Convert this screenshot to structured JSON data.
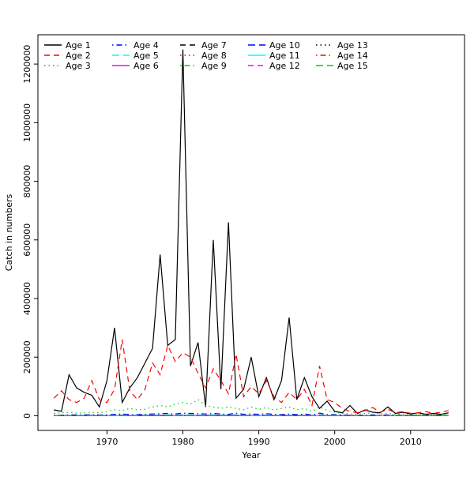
{
  "figure": {
    "background": "#ffffff"
  },
  "chart_data": {
    "type": "line",
    "title": "",
    "xlabel": "Year",
    "ylabel": "Catch in numbers",
    "xlim": [
      1960.9,
      2017.1
    ],
    "ylim": [
      -50000,
      1300000
    ],
    "x_ticks": [
      1970,
      1980,
      1990,
      2000,
      2010
    ],
    "y_ticks": [
      0,
      200000,
      400000,
      600000,
      800000,
      1000000,
      1200000
    ],
    "grid": false,
    "legend_position": "top-left",
    "legend_columns": 5,
    "years": [
      1963,
      1964,
      1965,
      1966,
      1967,
      1968,
      1969,
      1970,
      1971,
      1972,
      1973,
      1974,
      1975,
      1976,
      1977,
      1978,
      1979,
      1980,
      1981,
      1982,
      1983,
      1984,
      1985,
      1986,
      1987,
      1988,
      1989,
      1990,
      1991,
      1992,
      1993,
      1994,
      1995,
      1996,
      1997,
      1998,
      1999,
      2000,
      2001,
      2002,
      2003,
      2004,
      2005,
      2006,
      2007,
      2008,
      2009,
      2010,
      2011,
      2012,
      2013,
      2014,
      2015
    ],
    "series": [
      {
        "name": "Age 1",
        "color": "#000000",
        "dash": "solid",
        "values": [
          20000,
          15000,
          140000,
          95000,
          80000,
          70000,
          30000,
          120000,
          300000,
          45000,
          95000,
          130000,
          180000,
          230000,
          550000,
          240000,
          260000,
          1250000,
          170000,
          250000,
          30000,
          600000,
          90000,
          660000,
          60000,
          90000,
          200000,
          65000,
          130000,
          55000,
          120000,
          335000,
          55000,
          130000,
          65000,
          25000,
          50000,
          15000,
          10000,
          35000,
          8000,
          20000,
          12000,
          10000,
          30000,
          8000,
          12000,
          6000,
          10000,
          5000,
          8000,
          5000,
          10000
        ]
      },
      {
        "name": "Age 2",
        "color": "#FF0000",
        "dash": "dashed",
        "values": [
          60000,
          85000,
          55000,
          45000,
          60000,
          120000,
          55000,
          45000,
          90000,
          260000,
          85000,
          55000,
          90000,
          180000,
          140000,
          240000,
          185000,
          215000,
          200000,
          145000,
          95000,
          160000,
          120000,
          75000,
          210000,
          65000,
          100000,
          75000,
          120000,
          65000,
          45000,
          80000,
          55000,
          90000,
          35000,
          170000,
          55000,
          45000,
          25000,
          15000,
          10000,
          18000,
          28000,
          12000,
          22000,
          10000,
          14000,
          8000,
          10000,
          14000,
          8000,
          12000,
          18000
        ]
      },
      {
        "name": "Age 3",
        "color": "#00CD00",
        "dash": "dotted",
        "values": [
          8000,
          10000,
          12000,
          9000,
          10000,
          12000,
          10000,
          15000,
          20000,
          18000,
          25000,
          20000,
          22000,
          30000,
          35000,
          30000,
          40000,
          45000,
          40000,
          55000,
          35000,
          30000,
          25000,
          30000,
          25000,
          20000,
          30000,
          22000,
          28000,
          20000,
          25000,
          30000,
          20000,
          25000,
          15000,
          30000,
          18000,
          12000,
          8000,
          6000,
          5000,
          8000,
          10000,
          6000,
          8000,
          5000,
          6000,
          4000,
          5000,
          6000,
          4000,
          5000,
          6000
        ]
      },
      {
        "name": "Age 4",
        "color": "#0000FF",
        "dash": "dotdash",
        "values": [
          2000,
          2000,
          3000,
          3000,
          3000,
          4000,
          3000,
          3000,
          5000,
          6000,
          4000,
          4000,
          5000,
          6000,
          7000,
          8000,
          6000,
          9000,
          8000,
          7000,
          6000,
          8000,
          6000,
          5000,
          9000,
          5000,
          6000,
          5000,
          7000,
          5000,
          4000,
          6000,
          4000,
          6000,
          3000,
          9000,
          4000,
          4000,
          3000,
          2000,
          2000,
          2000,
          3000,
          2000,
          3000,
          2000,
          2000,
          2000,
          2000,
          2000,
          2000,
          2000,
          2000
        ]
      },
      {
        "name": "Age 5",
        "color": "#00FFFF",
        "dash": "longdash",
        "values": [
          1000,
          1000,
          1500,
          1500,
          1500,
          2000,
          1500,
          1500,
          2000,
          3000,
          2000,
          2000,
          2500,
          3000,
          3000,
          3500,
          3000,
          4000,
          3500,
          3000,
          2500,
          3500,
          2500,
          2000,
          4000,
          2000,
          2500,
          2000,
          3000,
          2000,
          1500,
          2500,
          1500,
          2500,
          1000,
          4000,
          1500,
          1500,
          1000,
          800,
          800,
          800,
          1000,
          800,
          1000,
          800,
          800,
          800,
          800,
          800,
          800,
          800,
          800
        ]
      },
      {
        "name": "Age 6",
        "color": "#FF00FF",
        "dash": "solid",
        "values": [
          500,
          500,
          800,
          800,
          800,
          1000,
          800,
          800,
          1000,
          1500,
          1000,
          1000,
          1200,
          1500,
          1500,
          1800,
          1500,
          2000,
          1800,
          1500,
          1200,
          1800,
          1200,
          1000,
          2000,
          1000,
          1200,
          1000,
          1500,
          1000,
          800,
          1200,
          800,
          1200,
          500,
          2000,
          800,
          800,
          500,
          400,
          400,
          400,
          500,
          400,
          500,
          400,
          400,
          400,
          400,
          400,
          400,
          400,
          400
        ]
      },
      {
        "name": "Age 7",
        "color": "#000000",
        "dash": "dashed",
        "values": [
          300,
          300,
          400,
          400,
          400,
          500,
          400,
          400,
          500,
          800,
          500,
          500,
          600,
          800,
          800,
          900,
          800,
          1000,
          900,
          800,
          600,
          900,
          600,
          500,
          1000,
          500,
          600,
          500,
          800,
          500,
          400,
          600,
          400,
          600,
          300,
          1000,
          400,
          400,
          300,
          200,
          200,
          200,
          300,
          200,
          300,
          200,
          200,
          200,
          200,
          200,
          200,
          200,
          200
        ]
      },
      {
        "name": "Age 8",
        "color": "#FF0000",
        "dash": "dotted",
        "values": [
          150,
          150,
          200,
          200,
          200,
          250,
          200,
          200,
          250,
          400,
          250,
          250,
          300,
          400,
          400,
          450,
          400,
          500,
          450,
          400,
          300,
          450,
          300,
          250,
          500,
          250,
          300,
          250,
          400,
          250,
          200,
          300,
          200,
          300,
          150,
          500,
          200,
          200,
          150,
          100,
          100,
          100,
          150,
          100,
          150,
          100,
          100,
          100,
          100,
          100,
          100,
          100,
          100
        ]
      },
      {
        "name": "Age 9",
        "color": "#00CD00",
        "dash": "dotdash",
        "values": [
          80,
          80,
          100,
          100,
          100,
          120,
          100,
          100,
          120,
          200,
          120,
          120,
          150,
          200,
          200,
          220,
          200,
          250,
          220,
          200,
          150,
          220,
          150,
          120,
          250,
          120,
          150,
          120,
          200,
          120,
          100,
          150,
          100,
          150,
          80,
          250,
          100,
          100,
          80,
          50,
          50,
          50,
          80,
          50,
          80,
          50,
          50,
          50,
          50,
          50,
          50,
          50,
          50
        ]
      },
      {
        "name": "Age 10",
        "color": "#0000FF",
        "dash": "longdash",
        "values": [
          40,
          40,
          50,
          50,
          50,
          60,
          50,
          50,
          60,
          100,
          60,
          60,
          80,
          100,
          100,
          110,
          100,
          120,
          110,
          100,
          80,
          110,
          80,
          60,
          120,
          60,
          80,
          60,
          100,
          60,
          50,
          80,
          50,
          80,
          40,
          120,
          50,
          50,
          40,
          30,
          30,
          30,
          40,
          30,
          40,
          30,
          30,
          30,
          30,
          30,
          30,
          30,
          30
        ]
      },
      {
        "name": "Age 11",
        "color": "#00FFFF",
        "dash": "solid",
        "values": [
          20,
          20,
          25,
          25,
          25,
          30,
          25,
          25,
          30,
          50,
          30,
          30,
          40,
          50,
          50,
          55,
          50,
          60,
          55,
          50,
          40,
          55,
          40,
          30,
          60,
          30,
          40,
          30,
          50,
          30,
          25,
          40,
          25,
          40,
          20,
          60,
          25,
          25,
          20,
          15,
          15,
          15,
          20,
          15,
          20,
          15,
          15,
          15,
          15,
          15,
          15,
          15,
          15
        ]
      },
      {
        "name": "Age 12",
        "color": "#FF00FF",
        "dash": "dashed",
        "values": [
          10,
          10,
          12,
          12,
          12,
          15,
          12,
          12,
          15,
          25,
          15,
          15,
          20,
          25,
          25,
          28,
          25,
          30,
          28,
          25,
          20,
          28,
          20,
          15,
          30,
          15,
          20,
          15,
          25,
          15,
          12,
          20,
          12,
          20,
          10,
          30,
          12,
          12,
          10,
          8,
          8,
          8,
          10,
          8,
          10,
          8,
          8,
          8,
          8,
          8,
          8,
          8,
          8
        ]
      },
      {
        "name": "Age 13",
        "color": "#000000",
        "dash": "dotted",
        "values": [
          5,
          5,
          6,
          6,
          6,
          8,
          6,
          6,
          8,
          12,
          8,
          8,
          10,
          12,
          12,
          14,
          12,
          15,
          14,
          12,
          10,
          14,
          10,
          8,
          15,
          8,
          10,
          8,
          12,
          8,
          6,
          10,
          6,
          10,
          5,
          15,
          6,
          6,
          5,
          4,
          4,
          4,
          5,
          4,
          5,
          4,
          4,
          4,
          4,
          4,
          4,
          4,
          4
        ]
      },
      {
        "name": "Age 14",
        "color": "#FF0000",
        "dash": "dotdash",
        "values": [
          2,
          2,
          3,
          3,
          3,
          4,
          3,
          3,
          4,
          6,
          4,
          4,
          5,
          6,
          6,
          7,
          6,
          8,
          7,
          6,
          5,
          7,
          5,
          4,
          8,
          4,
          5,
          4,
          6,
          4,
          3,
          5,
          3,
          5,
          2,
          8,
          3,
          3,
          2,
          2,
          2,
          2,
          2,
          2,
          2,
          2,
          2,
          2,
          2,
          2,
          2,
          2,
          2
        ]
      },
      {
        "name": "Age 15",
        "color": "#00CD00",
        "dash": "longdash",
        "values": [
          1,
          1,
          1,
          1,
          1,
          2,
          1,
          1,
          2,
          3,
          2,
          2,
          2,
          3,
          3,
          3,
          3,
          4,
          3,
          3,
          2,
          3,
          2,
          2,
          4,
          2,
          2,
          2,
          3,
          2,
          1,
          2,
          1,
          2,
          1,
          4,
          1,
          1,
          1,
          1,
          1,
          1,
          1,
          1,
          1,
          1,
          1,
          1,
          1,
          1,
          1,
          1,
          1
        ]
      }
    ]
  }
}
